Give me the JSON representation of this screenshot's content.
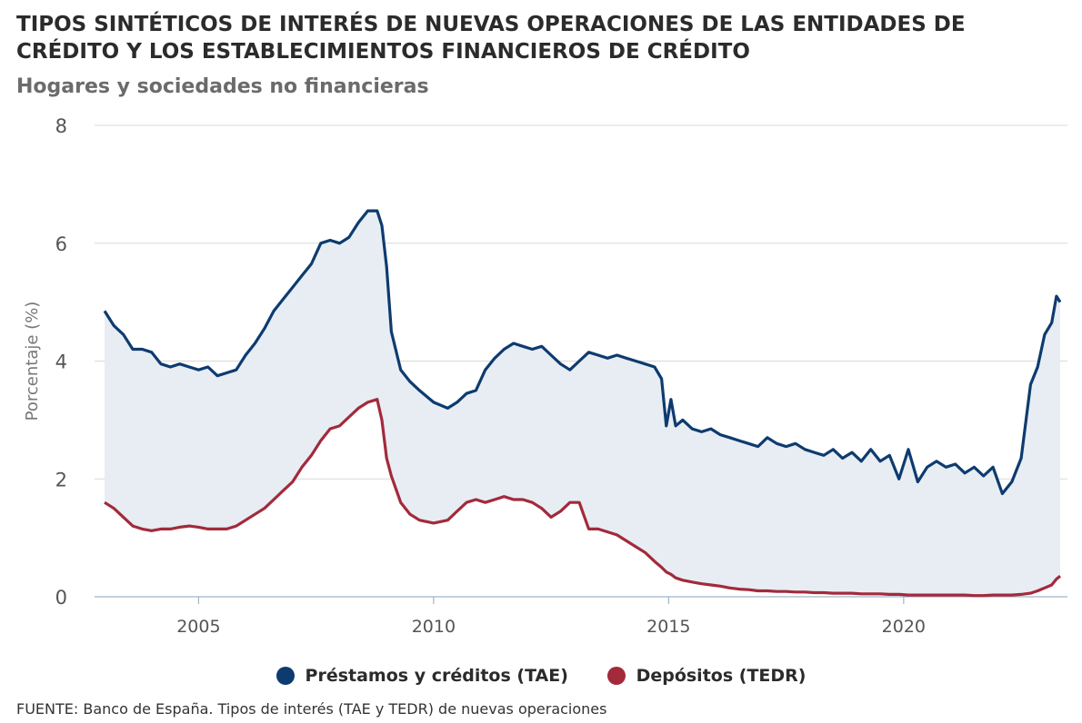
{
  "title": "TIPOS SINTÉTICOS DE INTERÉS DE NUEVAS OPERACIONES DE LAS ENTIDADES DE CRÉDITO Y LOS ESTABLECIMIENTOS FINANCIEROS DE CRÉDITO",
  "subtitle": "Hogares y sociedades no financieras",
  "source": "FUENTE: Banco de España. Tipos de interés (TAE y TEDR) de nuevas operaciones",
  "colors": {
    "tae": "#0e3b6f",
    "tedr": "#a22a3b",
    "area": "#e7edf3",
    "grid": "#d9d9d9",
    "axis": "#a0b4c6"
  },
  "legend": [
    {
      "label": "Préstamos y créditos (TAE)",
      "color": "#0e3b6f"
    },
    {
      "label": "Depósitos (TEDR)",
      "color": "#a22a3b"
    }
  ],
  "chart_data": {
    "type": "line",
    "title": "TIPOS SINTÉTICOS DE INTERÉS DE NUEVAS OPERACIONES DE LAS ENTIDADES DE CRÉDITO Y LOS ESTABLECIMIENTOS FINANCIEROS DE CRÉDITO",
    "subtitle": "Hogares y sociedades no financieras",
    "xlabel": "",
    "ylabel": "Porcentaje (%)",
    "xlim": [
      2003.0,
      2023.33
    ],
    "ylim": [
      0,
      8
    ],
    "yticks": [
      0,
      2,
      4,
      6,
      8
    ],
    "xticks": [
      2005,
      2010,
      2015,
      2020
    ],
    "grid": true,
    "legend_position": "bottom",
    "area_between_series": true,
    "series": [
      {
        "name": "Préstamos y créditos (TAE)",
        "x": [
          2003.0,
          2003.2,
          2003.4,
          2003.6,
          2003.8,
          2004.0,
          2004.2,
          2004.4,
          2004.6,
          2004.8,
          2005.0,
          2005.2,
          2005.4,
          2005.6,
          2005.8,
          2006.0,
          2006.2,
          2006.4,
          2006.6,
          2006.8,
          2007.0,
          2007.2,
          2007.4,
          2007.6,
          2007.8,
          2008.0,
          2008.2,
          2008.4,
          2008.6,
          2008.8,
          2008.9,
          2009.0,
          2009.1,
          2009.3,
          2009.5,
          2009.7,
          2010.0,
          2010.3,
          2010.5,
          2010.7,
          2010.9,
          2011.1,
          2011.3,
          2011.5,
          2011.7,
          2011.9,
          2012.1,
          2012.3,
          2012.5,
          2012.7,
          2012.9,
          2013.1,
          2013.3,
          2013.5,
          2013.7,
          2013.9,
          2014.1,
          2014.3,
          2014.5,
          2014.7,
          2014.85,
          2014.95,
          2015.05,
          2015.15,
          2015.3,
          2015.5,
          2015.7,
          2015.9,
          2016.1,
          2016.3,
          2016.5,
          2016.7,
          2016.9,
          2017.1,
          2017.3,
          2017.5,
          2017.7,
          2017.9,
          2018.1,
          2018.3,
          2018.5,
          2018.7,
          2018.9,
          2019.1,
          2019.3,
          2019.5,
          2019.7,
          2019.9,
          2020.1,
          2020.3,
          2020.5,
          2020.7,
          2020.9,
          2021.1,
          2021.3,
          2021.5,
          2021.7,
          2021.9,
          2022.1,
          2022.3,
          2022.5,
          2022.7,
          2022.85,
          2023.0,
          2023.15,
          2023.25,
          2023.33
        ],
        "values": [
          4.85,
          4.6,
          4.45,
          4.2,
          4.2,
          4.15,
          3.95,
          3.9,
          3.95,
          3.9,
          3.85,
          3.9,
          3.75,
          3.8,
          3.85,
          4.1,
          4.3,
          4.55,
          4.85,
          5.05,
          5.25,
          5.45,
          5.65,
          6.0,
          6.05,
          6.0,
          6.1,
          6.35,
          6.55,
          6.55,
          6.3,
          5.6,
          4.5,
          3.85,
          3.65,
          3.5,
          3.3,
          3.2,
          3.3,
          3.45,
          3.5,
          3.85,
          4.05,
          4.2,
          4.3,
          4.25,
          4.2,
          4.25,
          4.1,
          3.95,
          3.85,
          4.0,
          4.15,
          4.1,
          4.05,
          4.1,
          4.05,
          4.0,
          3.95,
          3.9,
          3.7,
          2.9,
          3.35,
          2.9,
          3.0,
          2.85,
          2.8,
          2.85,
          2.75,
          2.7,
          2.65,
          2.6,
          2.55,
          2.7,
          2.6,
          2.55,
          2.6,
          2.5,
          2.45,
          2.4,
          2.5,
          2.35,
          2.45,
          2.3,
          2.5,
          2.3,
          2.4,
          2.0,
          2.5,
          1.95,
          2.2,
          2.3,
          2.2,
          2.25,
          2.1,
          2.2,
          2.05,
          2.2,
          1.75,
          1.95,
          2.35,
          3.6,
          3.9,
          4.45,
          4.65,
          5.1,
          5.0
        ]
      },
      {
        "name": "Depósitos (TEDR)",
        "x": [
          2003.0,
          2003.2,
          2003.4,
          2003.6,
          2003.8,
          2004.0,
          2004.2,
          2004.4,
          2004.6,
          2004.8,
          2005.0,
          2005.2,
          2005.4,
          2005.6,
          2005.8,
          2006.0,
          2006.2,
          2006.4,
          2006.6,
          2006.8,
          2007.0,
          2007.2,
          2007.4,
          2007.6,
          2007.8,
          2008.0,
          2008.2,
          2008.4,
          2008.6,
          2008.8,
          2008.9,
          2009.0,
          2009.1,
          2009.3,
          2009.5,
          2009.7,
          2010.0,
          2010.3,
          2010.5,
          2010.7,
          2010.9,
          2011.1,
          2011.3,
          2011.5,
          2011.7,
          2011.9,
          2012.1,
          2012.3,
          2012.5,
          2012.7,
          2012.9,
          2013.1,
          2013.3,
          2013.5,
          2013.7,
          2013.9,
          2014.1,
          2014.3,
          2014.5,
          2014.7,
          2014.85,
          2014.95,
          2015.05,
          2015.15,
          2015.3,
          2015.5,
          2015.7,
          2015.9,
          2016.1,
          2016.3,
          2016.5,
          2016.7,
          2016.9,
          2017.1,
          2017.3,
          2017.5,
          2017.7,
          2017.9,
          2018.1,
          2018.3,
          2018.5,
          2018.7,
          2018.9,
          2019.1,
          2019.3,
          2019.5,
          2019.7,
          2019.9,
          2020.1,
          2020.3,
          2020.5,
          2020.7,
          2020.9,
          2021.1,
          2021.3,
          2021.5,
          2021.7,
          2021.9,
          2022.1,
          2022.3,
          2022.5,
          2022.7,
          2022.85,
          2023.0,
          2023.15,
          2023.25,
          2023.33
        ],
        "values": [
          1.6,
          1.5,
          1.35,
          1.2,
          1.15,
          1.12,
          1.15,
          1.15,
          1.18,
          1.2,
          1.18,
          1.15,
          1.15,
          1.15,
          1.2,
          1.3,
          1.4,
          1.5,
          1.65,
          1.8,
          1.95,
          2.2,
          2.4,
          2.65,
          2.85,
          2.9,
          3.05,
          3.2,
          3.3,
          3.35,
          3.0,
          2.35,
          2.05,
          1.6,
          1.4,
          1.3,
          1.25,
          1.3,
          1.45,
          1.6,
          1.65,
          1.6,
          1.65,
          1.7,
          1.65,
          1.65,
          1.6,
          1.5,
          1.35,
          1.45,
          1.6,
          1.6,
          1.15,
          1.15,
          1.1,
          1.05,
          0.95,
          0.85,
          0.75,
          0.6,
          0.5,
          0.42,
          0.38,
          0.32,
          0.28,
          0.25,
          0.22,
          0.2,
          0.18,
          0.15,
          0.13,
          0.12,
          0.1,
          0.1,
          0.09,
          0.09,
          0.08,
          0.08,
          0.07,
          0.07,
          0.06,
          0.06,
          0.06,
          0.05,
          0.05,
          0.05,
          0.04,
          0.04,
          0.03,
          0.03,
          0.03,
          0.03,
          0.03,
          0.03,
          0.03,
          0.02,
          0.02,
          0.03,
          0.03,
          0.03,
          0.04,
          0.06,
          0.1,
          0.15,
          0.2,
          0.3,
          0.35
        ]
      }
    ]
  }
}
